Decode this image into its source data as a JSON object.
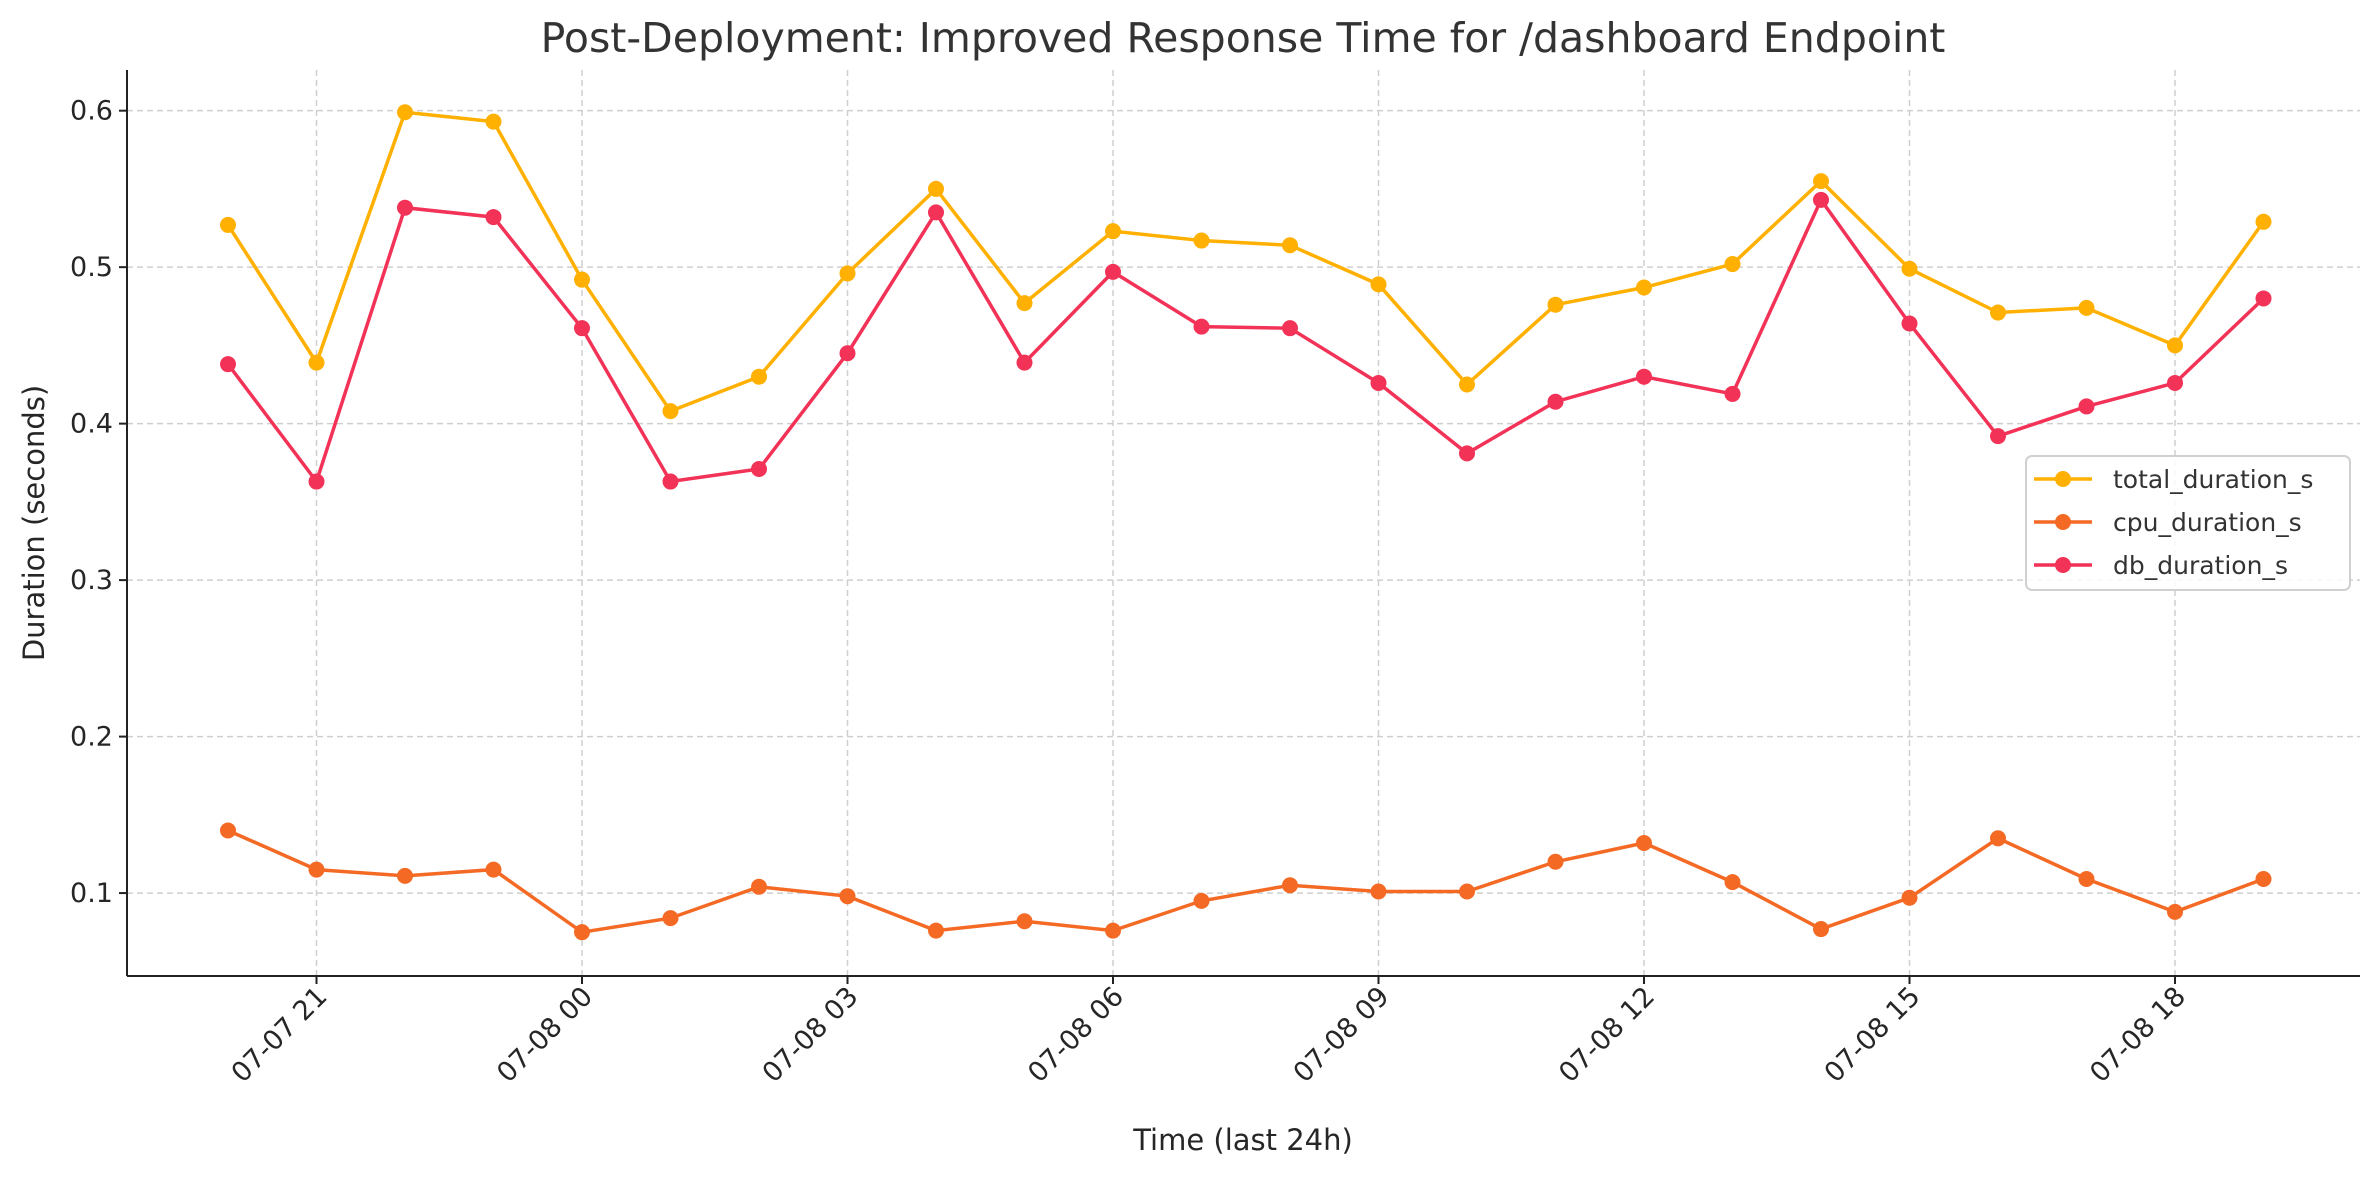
{
  "chart_data": {
    "type": "line",
    "title": "Post-Deployment: Improved Response Time for /dashboard Endpoint",
    "xlabel": "Time (last 24h)",
    "ylabel": "Duration (seconds)",
    "x": [
      "07-07 20:00",
      "07-07 21:00",
      "07-07 22:00",
      "07-07 23:00",
      "07-08 00:00",
      "07-08 01:00",
      "07-08 02:00",
      "07-08 03:00",
      "07-08 04:00",
      "07-08 05:00",
      "07-08 06:00",
      "07-08 07:00",
      "07-08 08:00",
      "07-08 09:00",
      "07-08 10:00",
      "07-08 11:00",
      "07-08 12:00",
      "07-08 13:00",
      "07-08 14:00",
      "07-08 15:00",
      "07-08 16:00",
      "07-08 17:00",
      "07-08 18:00",
      "07-08 19:00"
    ],
    "xticks": [
      "07-07 21",
      "07-08 00",
      "07-08 03",
      "07-08 06",
      "07-08 09",
      "07-08 12",
      "07-08 15",
      "07-08 18"
    ],
    "yticks": [
      "0.1",
      "0.2",
      "0.3",
      "0.4",
      "0.5",
      "0.6"
    ],
    "ylim": [
      0.047,
      0.626
    ],
    "grid": true,
    "legend_position": "center-right",
    "series": [
      {
        "name": "total_duration_s",
        "color": "#FFB000",
        "values": [
          0.527,
          0.439,
          0.599,
          0.593,
          0.492,
          0.408,
          0.43,
          0.496,
          0.55,
          0.477,
          0.523,
          0.517,
          0.514,
          0.489,
          0.425,
          0.476,
          0.487,
          0.502,
          0.555,
          0.499,
          0.471,
          0.474,
          0.45,
          0.529
        ]
      },
      {
        "name": "cpu_duration_s",
        "color": "#F46A25",
        "values": [
          0.14,
          0.115,
          0.111,
          0.115,
          0.075,
          0.084,
          0.104,
          0.098,
          0.076,
          0.082,
          0.076,
          0.095,
          0.105,
          0.101,
          0.101,
          0.12,
          0.132,
          0.107,
          0.077,
          0.097,
          0.135,
          0.109,
          0.088,
          0.109
        ]
      },
      {
        "name": "db_duration_s",
        "color": "#F23257",
        "values": [
          0.438,
          0.363,
          0.538,
          0.532,
          0.461,
          0.363,
          0.371,
          0.445,
          0.535,
          0.439,
          0.497,
          0.462,
          0.461,
          0.426,
          0.381,
          0.414,
          0.43,
          0.419,
          0.543,
          0.464,
          0.392,
          0.411,
          0.426,
          0.48
        ]
      }
    ]
  }
}
